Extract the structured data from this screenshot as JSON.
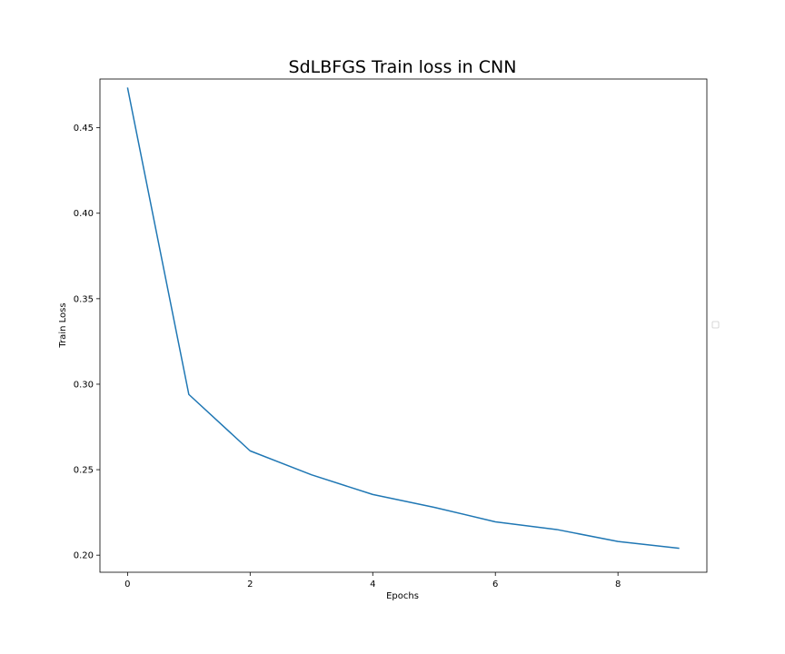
{
  "chart_data": {
    "type": "line",
    "title": "SdLBFGS Train loss in CNN",
    "xlabel": "Epochs",
    "ylabel": "Train Loss",
    "xlim": [
      -0.45,
      9.45
    ],
    "ylim": [
      0.19,
      0.4785
    ],
    "x_ticks": [
      0,
      2,
      4,
      6,
      8
    ],
    "y_ticks": [
      0.2,
      0.25,
      0.3,
      0.35,
      0.4,
      0.45
    ],
    "x_tick_labels": [
      "0",
      "2",
      "4",
      "6",
      "8"
    ],
    "y_tick_labels": [
      "0.20",
      "0.25",
      "0.30",
      "0.35",
      "0.40",
      "0.45"
    ],
    "grid": false,
    "legend": "center-right (empty)",
    "series": [
      {
        "color": "#1f77b4",
        "x": [
          0,
          1,
          2,
          3,
          4,
          5,
          6,
          7,
          8,
          9
        ],
        "y": [
          0.4735,
          0.294,
          0.261,
          0.247,
          0.2355,
          0.228,
          0.2195,
          0.215,
          0.208,
          0.204
        ]
      }
    ]
  }
}
